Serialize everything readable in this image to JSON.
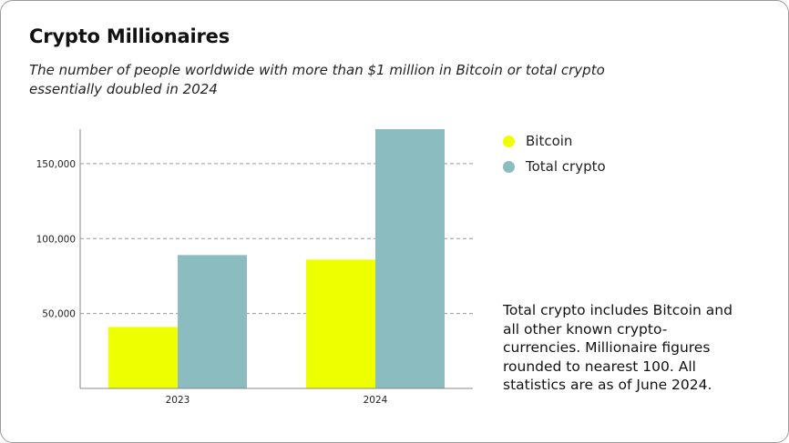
{
  "title": "Crypto Millionaires",
  "subtitle": "The number of people worldwide with more than $1 million in Bitcoin or total crypto essentially doubled in 2024",
  "note": "Total crypto includes Bitcoin and all other known crypto-currencies. Millionaire figures rounded to nearest 100. All statistics are as of June 2024.",
  "colors": {
    "bitcoin": "#eeff00",
    "total_crypto": "#8bbcbf",
    "gridline": "#9a9a9a",
    "axis": "#888888"
  },
  "chart_data": {
    "type": "bar",
    "categories": [
      "2023",
      "2024"
    ],
    "series": [
      {
        "name": "Bitcoin",
        "color": "#eeff00",
        "values": [
          41000,
          86000
        ]
      },
      {
        "name": "Total crypto",
        "color": "#8bbcbf",
        "values": [
          89000,
          173000
        ]
      }
    ],
    "yticks": [
      50000,
      100000,
      150000
    ],
    "ytick_labels": [
      "50,000",
      "100,000",
      "150,000"
    ],
    "ylim": [
      0,
      173000
    ],
    "grid": true,
    "legend_position": "right"
  }
}
